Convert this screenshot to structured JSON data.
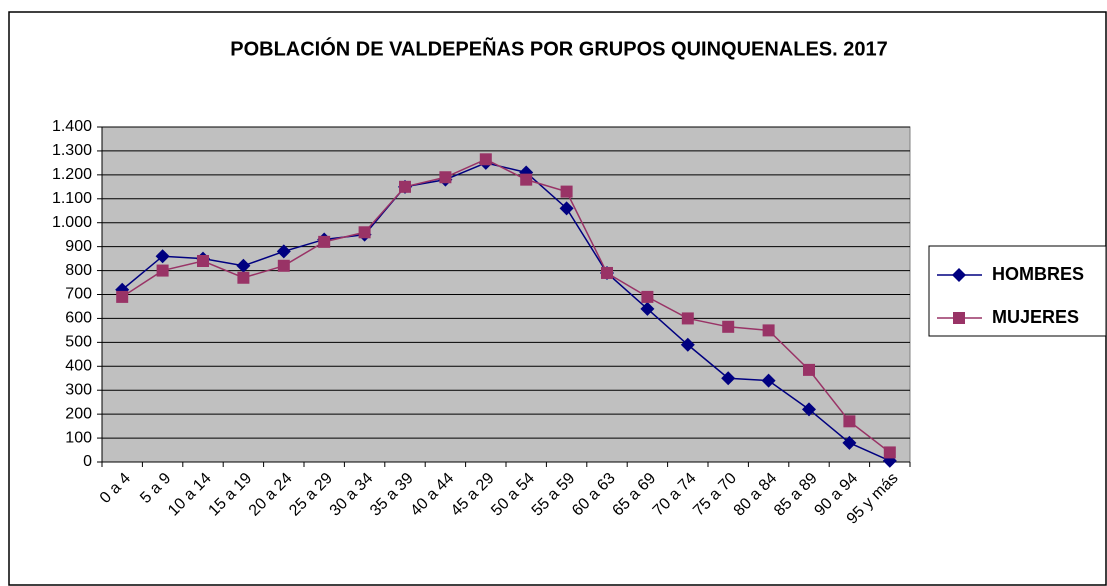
{
  "chart_data": {
    "type": "line",
    "title": "POBLACIÓN DE VALDEPEÑAS POR GRUPOS QUINQUENALES. 2017",
    "categories": [
      "0 a 4",
      "5 a 9",
      "10 a 14",
      "15 a 19",
      "20 a 24",
      "25 a 29",
      "30 a 34",
      "35 a 39",
      "40 a 44",
      "45 a 29",
      "50 a 54",
      "55 a 59",
      "60 a 63",
      "65 a 69",
      "70 a 74",
      "75 a 70",
      "80 a 84",
      "85 a 89",
      "90 a 94",
      "95 y más"
    ],
    "series": [
      {
        "name": "HOMBRES",
        "color": "#000080",
        "marker": "diamond",
        "values": [
          720,
          860,
          850,
          820,
          880,
          930,
          950,
          1150,
          1180,
          1250,
          1210,
          1060,
          790,
          640,
          490,
          350,
          340,
          220,
          80,
          5
        ]
      },
      {
        "name": "MUJERES",
        "color": "#993366",
        "marker": "square",
        "values": [
          690,
          800,
          840,
          770,
          820,
          920,
          960,
          1150,
          1190,
          1265,
          1180,
          1130,
          790,
          690,
          600,
          565,
          550,
          385,
          170,
          40
        ]
      }
    ],
    "ylim": [
      0,
      1400
    ],
    "yticks": [
      0,
      100,
      200,
      300,
      400,
      500,
      600,
      700,
      800,
      900,
      {
        "value": 1000,
        "label": "1.000"
      },
      {
        "value": 1100,
        "label": "1.100"
      },
      {
        "value": 1200,
        "label": "1.200"
      },
      {
        "value": 1300,
        "label": "1.300"
      },
      {
        "value": 1400,
        "label": "1.400"
      }
    ],
    "grid": true,
    "plot_background": "#c0c0c0",
    "legend": "right"
  }
}
